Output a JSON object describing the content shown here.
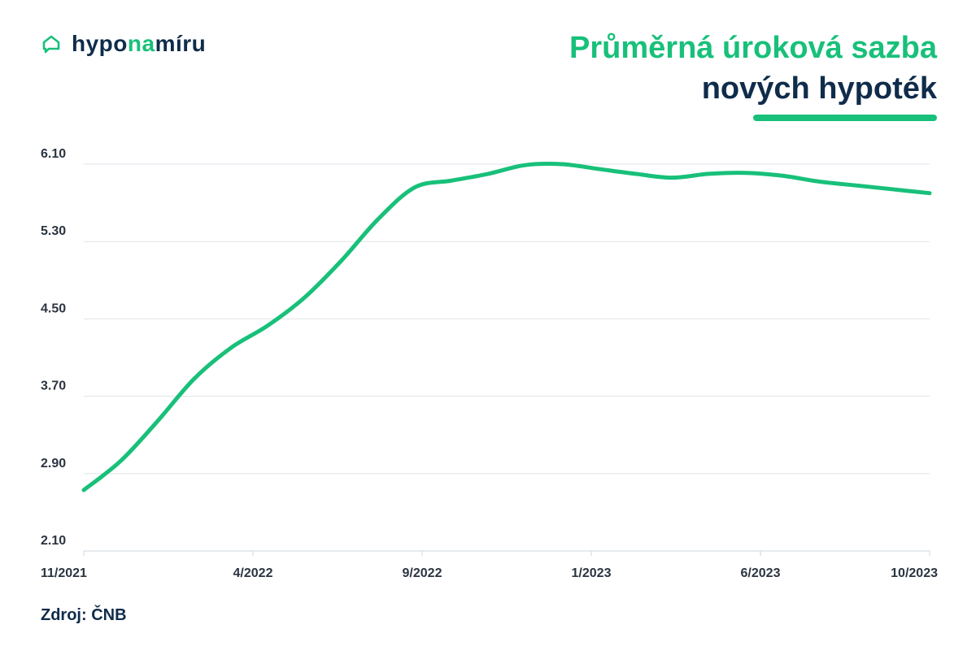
{
  "brand": {
    "name_part1": "hypo",
    "name_part2": "na",
    "name_part3": "míru",
    "icon": "house-chat-icon",
    "color_primary": "#0f2c4a",
    "color_accent": "#18c07a"
  },
  "title": {
    "line1": "Průměrná úroková sazba",
    "line2": "nových hypoték"
  },
  "source": "Zdroj: ČNB",
  "chart_data": {
    "type": "line",
    "title": "Průměrná úroková sazba nových hypoték",
    "xlabel": "",
    "ylabel": "",
    "x_tick_labels": [
      "11/2021",
      "4/2022",
      "9/2022",
      "1/2023",
      "6/2023",
      "10/2023"
    ],
    "y_tick_labels": [
      "2.10",
      "2.90",
      "3.70",
      "4.50",
      "5.30",
      "6.10"
    ],
    "ylim": [
      2.1,
      6.1
    ],
    "grid": "horizontal",
    "legend": "none",
    "series": [
      {
        "color": "#18c07a",
        "x": [
          "11/2021",
          "12/2021",
          "1/2022",
          "2/2022",
          "3/2022",
          "4/2022",
          "5/2022",
          "6/2022",
          "7/2022",
          "8/2022",
          "9/2022",
          "10/2022",
          "11/2022",
          "12/2022",
          "1/2023",
          "2/2023",
          "3/2023",
          "4/2023",
          "5/2023",
          "6/2023",
          "7/2023",
          "8/2023",
          "9/2023",
          "10/2023"
        ],
        "values": [
          2.73,
          3.03,
          3.44,
          3.88,
          4.2,
          4.43,
          4.72,
          5.1,
          5.53,
          5.86,
          5.93,
          6.0,
          6.09,
          6.1,
          6.05,
          6.0,
          5.96,
          6.0,
          6.01,
          5.98,
          5.92,
          5.88,
          5.84,
          5.8
        ]
      }
    ]
  }
}
